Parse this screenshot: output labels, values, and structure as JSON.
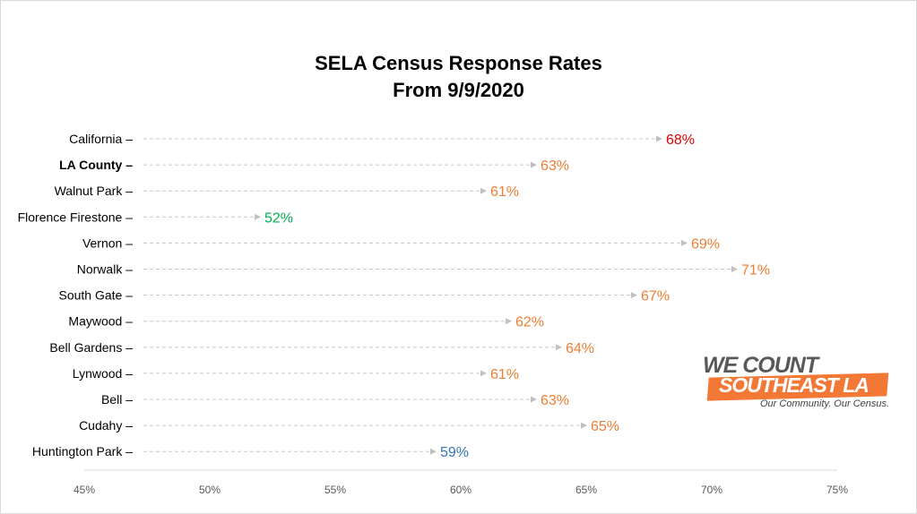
{
  "chart_data": {
    "type": "dot",
    "title": [
      "SELA Census Response Rates",
      "From 9/9/2020"
    ],
    "xlim": [
      45,
      75
    ],
    "x_ticks": [
      "45%",
      "50%",
      "55%",
      "60%",
      "65%",
      "70%",
      "75%"
    ],
    "tick_values": [
      45,
      50,
      55,
      60,
      65,
      70,
      75
    ],
    "grid": false,
    "categories": [
      {
        "label": "California –",
        "value": 68,
        "value_label": "68%",
        "color": "#e00000",
        "bold": false
      },
      {
        "label": "LA County –",
        "value": 63,
        "value_label": "63%",
        "color": "#ed7d31",
        "bold": true
      },
      {
        "label": "Walnut Park –",
        "value": 61,
        "value_label": "61%",
        "color": "#ed7d31",
        "bold": false
      },
      {
        "label": "Florence Firestone –",
        "value": 52,
        "value_label": "52%",
        "color": "#00b050",
        "bold": false
      },
      {
        "label": "Vernon –",
        "value": 69,
        "value_label": "69%",
        "color": "#ed7d31",
        "bold": false
      },
      {
        "label": "Norwalk –",
        "value": 71,
        "value_label": "71%",
        "color": "#ed7d31",
        "bold": false
      },
      {
        "label": "South Gate –",
        "value": 67,
        "value_label": "67%",
        "color": "#ed7d31",
        "bold": false
      },
      {
        "label": "Maywood –",
        "value": 62,
        "value_label": "62%",
        "color": "#ed7d31",
        "bold": false
      },
      {
        "label": "Bell Gardens  –",
        "value": 64,
        "value_label": "64%",
        "color": "#ed7d31",
        "bold": false
      },
      {
        "label": "Lynwood –",
        "value": 61,
        "value_label": "61%",
        "color": "#ed7d31",
        "bold": false
      },
      {
        "label": "Bell –",
        "value": 63,
        "value_label": "63%",
        "color": "#ed7d31",
        "bold": false
      },
      {
        "label": "Cudahy –",
        "value": 65,
        "value_label": "65%",
        "color": "#ed7d31",
        "bold": false
      },
      {
        "label": "Huntington Park –",
        "value": 59,
        "value_label": "59%",
        "color": "#2e75b6",
        "bold": false
      }
    ]
  },
  "logo": {
    "line1": "WE COUNT",
    "line2": "SOUTHEAST LA",
    "tagline": "Our Community. Our Census."
  }
}
